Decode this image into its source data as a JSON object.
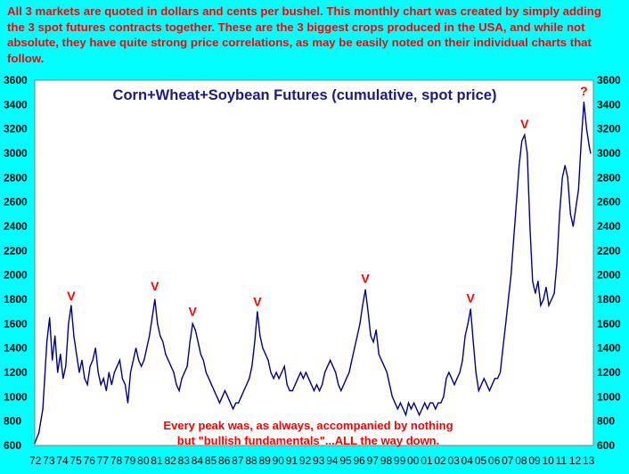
{
  "intro_text": "All 3 markets are quoted in dollars and cents per bushel. This monthly chart was created by simply adding the 3 spot futures contracts together. These are the 3 biggest crops produced in the USA, and while not absolute, they have quite strong price correlations, as may be easily noted on their individual charts that follow.",
  "colors": {
    "background": "#00ffff",
    "plot_background": "#ffffff",
    "line": "#00008b",
    "title": "#1a1a8c",
    "annotation": "#ff0000"
  },
  "chart_data": {
    "type": "line",
    "title": "Corn+Wheat+Soybean Futures (cumulative, spot price)",
    "xlabel": "",
    "ylabel": "",
    "ylim": [
      600,
      3600
    ],
    "yticks": [
      600,
      800,
      1000,
      1200,
      1400,
      1600,
      1800,
      2000,
      2200,
      2400,
      2600,
      2800,
      3000,
      3200,
      3400,
      3600
    ],
    "xticks": [
      "72",
      "73",
      "74",
      "75",
      "76",
      "77",
      "78",
      "79",
      "80",
      "81",
      "82",
      "83",
      "84",
      "85",
      "86",
      "87",
      "88",
      "89",
      "90",
      "91",
      "92",
      "93",
      "94",
      "95",
      "96",
      "97",
      "98",
      "99",
      "00",
      "01",
      "02",
      "03",
      "04",
      "05",
      "06",
      "07",
      "08",
      "09",
      "10",
      "11",
      "12",
      "13"
    ],
    "grid": false,
    "series": [
      {
        "values": [
          [
            1972.0,
            620
          ],
          [
            1972.3,
            700
          ],
          [
            1972.6,
            900
          ],
          [
            1972.9,
            1450
          ],
          [
            1973.1,
            1650
          ],
          [
            1973.3,
            1300
          ],
          [
            1973.5,
            1500
          ],
          [
            1973.7,
            1200
          ],
          [
            1973.9,
            1350
          ],
          [
            1974.1,
            1150
          ],
          [
            1974.3,
            1250
          ],
          [
            1974.5,
            1600
          ],
          [
            1974.7,
            1750
          ],
          [
            1974.9,
            1500
          ],
          [
            1975.1,
            1350
          ],
          [
            1975.3,
            1200
          ],
          [
            1975.5,
            1300
          ],
          [
            1975.7,
            1150
          ],
          [
            1975.9,
            1100
          ],
          [
            1976.1,
            1250
          ],
          [
            1976.3,
            1300
          ],
          [
            1976.5,
            1400
          ],
          [
            1976.7,
            1200
          ],
          [
            1976.9,
            1100
          ],
          [
            1977.1,
            1150
          ],
          [
            1977.3,
            1050
          ],
          [
            1977.5,
            1200
          ],
          [
            1977.7,
            1100
          ],
          [
            1977.9,
            1200
          ],
          [
            1978.1,
            1250
          ],
          [
            1978.3,
            1300
          ],
          [
            1978.5,
            1150
          ],
          [
            1978.7,
            1100
          ],
          [
            1978.9,
            950
          ],
          [
            1979.1,
            1200
          ],
          [
            1979.3,
            1300
          ],
          [
            1979.5,
            1400
          ],
          [
            1979.7,
            1300
          ],
          [
            1979.9,
            1250
          ],
          [
            1980.1,
            1300
          ],
          [
            1980.3,
            1400
          ],
          [
            1980.5,
            1500
          ],
          [
            1980.7,
            1650
          ],
          [
            1980.9,
            1800
          ],
          [
            1981.1,
            1600
          ],
          [
            1981.3,
            1500
          ],
          [
            1981.5,
            1450
          ],
          [
            1981.7,
            1350
          ],
          [
            1981.9,
            1300
          ],
          [
            1982.1,
            1250
          ],
          [
            1982.3,
            1200
          ],
          [
            1982.5,
            1100
          ],
          [
            1982.7,
            1050
          ],
          [
            1982.9,
            1150
          ],
          [
            1983.1,
            1200
          ],
          [
            1983.3,
            1250
          ],
          [
            1983.5,
            1450
          ],
          [
            1983.7,
            1600
          ],
          [
            1983.9,
            1550
          ],
          [
            1984.1,
            1450
          ],
          [
            1984.3,
            1350
          ],
          [
            1984.5,
            1300
          ],
          [
            1984.7,
            1200
          ],
          [
            1984.9,
            1150
          ],
          [
            1985.1,
            1100
          ],
          [
            1985.3,
            1050
          ],
          [
            1985.5,
            1000
          ],
          [
            1985.7,
            950
          ],
          [
            1985.9,
            1000
          ],
          [
            1986.1,
            1050
          ],
          [
            1986.3,
            1000
          ],
          [
            1986.5,
            950
          ],
          [
            1986.7,
            900
          ],
          [
            1986.9,
            950
          ],
          [
            1987.1,
            950
          ],
          [
            1987.3,
            1000
          ],
          [
            1987.5,
            1050
          ],
          [
            1987.7,
            1100
          ],
          [
            1987.9,
            1150
          ],
          [
            1988.1,
            1250
          ],
          [
            1988.3,
            1450
          ],
          [
            1988.5,
            1700
          ],
          [
            1988.7,
            1500
          ],
          [
            1988.9,
            1400
          ],
          [
            1989.1,
            1350
          ],
          [
            1989.3,
            1300
          ],
          [
            1989.5,
            1200
          ],
          [
            1989.7,
            1150
          ],
          [
            1989.9,
            1200
          ],
          [
            1990.1,
            1150
          ],
          [
            1990.3,
            1200
          ],
          [
            1990.5,
            1250
          ],
          [
            1990.7,
            1100
          ],
          [
            1990.9,
            1050
          ],
          [
            1991.1,
            1050
          ],
          [
            1991.3,
            1100
          ],
          [
            1991.5,
            1150
          ],
          [
            1991.7,
            1200
          ],
          [
            1991.9,
            1150
          ],
          [
            1992.1,
            1200
          ],
          [
            1992.3,
            1150
          ],
          [
            1992.5,
            1100
          ],
          [
            1992.7,
            1050
          ],
          [
            1992.9,
            1100
          ],
          [
            1993.1,
            1050
          ],
          [
            1993.3,
            1100
          ],
          [
            1993.5,
            1200
          ],
          [
            1993.7,
            1250
          ],
          [
            1993.9,
            1300
          ],
          [
            1994.1,
            1250
          ],
          [
            1994.3,
            1200
          ],
          [
            1994.5,
            1100
          ],
          [
            1994.7,
            1050
          ],
          [
            1994.9,
            1100
          ],
          [
            1995.1,
            1150
          ],
          [
            1995.3,
            1200
          ],
          [
            1995.5,
            1300
          ],
          [
            1995.7,
            1400
          ],
          [
            1995.9,
            1500
          ],
          [
            1996.1,
            1600
          ],
          [
            1996.3,
            1750
          ],
          [
            1996.5,
            1880
          ],
          [
            1996.7,
            1700
          ],
          [
            1996.9,
            1500
          ],
          [
            1997.1,
            1450
          ],
          [
            1997.3,
            1550
          ],
          [
            1997.5,
            1350
          ],
          [
            1997.7,
            1300
          ],
          [
            1997.9,
            1250
          ],
          [
            1998.1,
            1200
          ],
          [
            1998.3,
            1100
          ],
          [
            1998.5,
            1000
          ],
          [
            1998.7,
            950
          ],
          [
            1998.9,
            900
          ],
          [
            1999.1,
            950
          ],
          [
            1999.3,
            900
          ],
          [
            1999.5,
            850
          ],
          [
            1999.7,
            950
          ],
          [
            1999.9,
            900
          ],
          [
            2000.1,
            950
          ],
          [
            2000.3,
            900
          ],
          [
            2000.5,
            850
          ],
          [
            2000.7,
            900
          ],
          [
            2000.9,
            950
          ],
          [
            2001.1,
            900
          ],
          [
            2001.3,
            950
          ],
          [
            2001.5,
            950
          ],
          [
            2001.7,
            900
          ],
          [
            2001.9,
            950
          ],
          [
            2002.1,
            950
          ],
          [
            2002.3,
            1000
          ],
          [
            2002.5,
            1150
          ],
          [
            2002.7,
            1200
          ],
          [
            2002.9,
            1150
          ],
          [
            2003.1,
            1100
          ],
          [
            2003.3,
            1150
          ],
          [
            2003.5,
            1200
          ],
          [
            2003.7,
            1300
          ],
          [
            2003.9,
            1500
          ],
          [
            2004.1,
            1600
          ],
          [
            2004.3,
            1720
          ],
          [
            2004.5,
            1450
          ],
          [
            2004.7,
            1200
          ],
          [
            2004.9,
            1050
          ],
          [
            2005.1,
            1100
          ],
          [
            2005.3,
            1150
          ],
          [
            2005.5,
            1100
          ],
          [
            2005.7,
            1050
          ],
          [
            2005.9,
            1100
          ],
          [
            2006.1,
            1150
          ],
          [
            2006.3,
            1150
          ],
          [
            2006.5,
            1200
          ],
          [
            2006.7,
            1400
          ],
          [
            2006.9,
            1600
          ],
          [
            2007.1,
            1800
          ],
          [
            2007.3,
            2000
          ],
          [
            2007.5,
            2300
          ],
          [
            2007.7,
            2600
          ],
          [
            2007.9,
            2900
          ],
          [
            2008.1,
            3100
          ],
          [
            2008.3,
            3150
          ],
          [
            2008.5,
            3000
          ],
          [
            2008.7,
            2400
          ],
          [
            2008.9,
            1950
          ],
          [
            2009.1,
            1850
          ],
          [
            2009.3,
            1950
          ],
          [
            2009.5,
            1750
          ],
          [
            2009.7,
            1800
          ],
          [
            2009.9,
            1900
          ],
          [
            2010.1,
            1750
          ],
          [
            2010.3,
            1800
          ],
          [
            2010.5,
            1850
          ],
          [
            2010.7,
            2100
          ],
          [
            2010.9,
            2500
          ],
          [
            2011.1,
            2800
          ],
          [
            2011.3,
            2900
          ],
          [
            2011.5,
            2800
          ],
          [
            2011.7,
            2500
          ],
          [
            2011.9,
            2400
          ],
          [
            2012.1,
            2550
          ],
          [
            2012.3,
            2700
          ],
          [
            2012.5,
            3100
          ],
          [
            2012.7,
            3420
          ],
          [
            2012.9,
            3200
          ],
          [
            2013.1,
            3050
          ],
          [
            2013.2,
            3000
          ]
        ]
      }
    ],
    "annotations": [
      {
        "text": "V",
        "x": 1974.7,
        "y": 1750
      },
      {
        "text": "V",
        "x": 1980.9,
        "y": 1830
      },
      {
        "text": "V",
        "x": 1983.7,
        "y": 1620
      },
      {
        "text": "V",
        "x": 1988.5,
        "y": 1700
      },
      {
        "text": "V",
        "x": 1996.5,
        "y": 1890
      },
      {
        "text": "V",
        "x": 2004.3,
        "y": 1730
      },
      {
        "text": "V",
        "x": 2008.3,
        "y": 3160
      },
      {
        "text": "?",
        "x": 2012.7,
        "y": 3430
      }
    ],
    "note_lines": [
      "Every peak was, as always, accompanied by nothing",
      "but \"bullish fundamentals\"...ALL the way down."
    ]
  }
}
